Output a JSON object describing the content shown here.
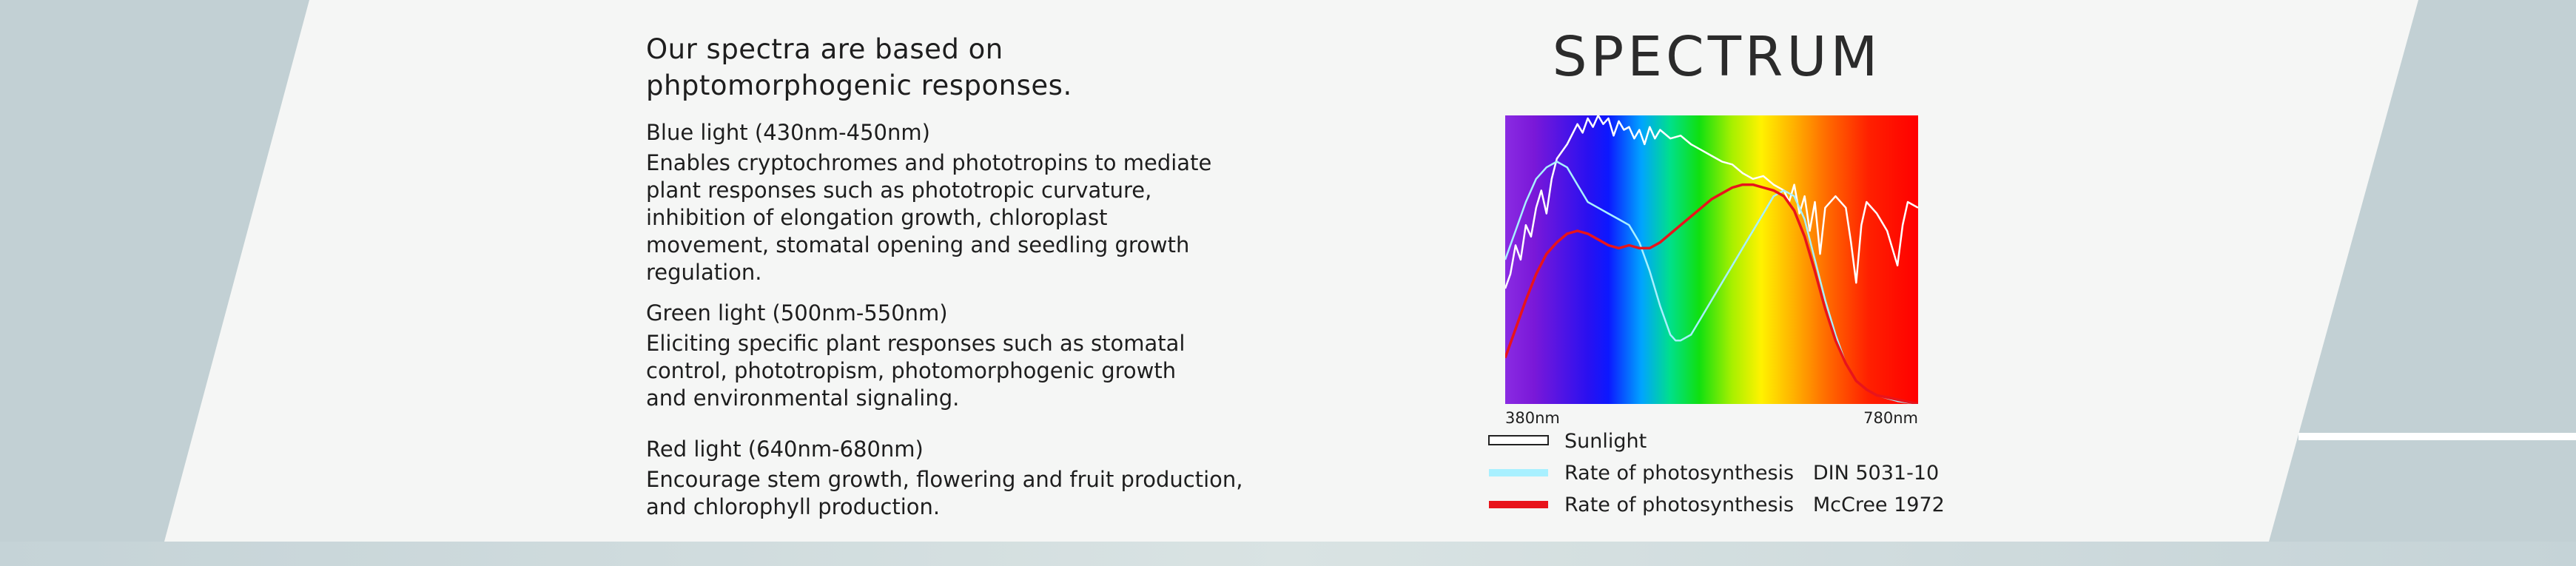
{
  "text": {
    "headline_line1": "Our spectra are based on",
    "headline_line2": "phptomorphogenic responses.",
    "blue_title": "Blue light (430nm-450nm)",
    "blue_body": [
      "Enables cryptochromes and phototropins to mediate",
      "plant responses such as phototropic curvature,",
      "inhibition of elongation growth, chloroplast",
      "movement, stomatal opening and seedling growth",
      "regulation."
    ],
    "green_title": "Green light (500nm-550nm)",
    "green_body": [
      "Eliciting specific plant responses such as stomatal",
      "control, phototropism, photomorphogenic growth",
      "and environmental signaling."
    ],
    "red_title": "Red light (640nm-680nm)",
    "red_body": [
      "Encourage stem growth, flowering and fruit production,",
      "and chlorophyll production."
    ]
  },
  "colors": {
    "background": "#c2d0d4",
    "panel": "#f5f6f5",
    "sunlight": "#ffffff",
    "din": "#a8f0ff",
    "mccree": "#e8141b"
  },
  "chart_data": {
    "type": "line",
    "title": "SPECTRUM",
    "xlim": [
      380,
      780
    ],
    "ylim": [
      0,
      1
    ],
    "x_tick_labels": [
      "380nm",
      "780nm"
    ],
    "background": "visible spectrum gradient",
    "series": [
      {
        "name": "Sunlight",
        "color": "#ffffff",
        "points": [
          [
            380,
            0.4
          ],
          [
            385,
            0.45
          ],
          [
            390,
            0.55
          ],
          [
            395,
            0.5
          ],
          [
            400,
            0.62
          ],
          [
            405,
            0.58
          ],
          [
            410,
            0.68
          ],
          [
            415,
            0.74
          ],
          [
            420,
            0.66
          ],
          [
            425,
            0.78
          ],
          [
            430,
            0.85
          ],
          [
            440,
            0.9
          ],
          [
            450,
            0.97
          ],
          [
            455,
            0.94
          ],
          [
            460,
            0.99
          ],
          [
            465,
            0.96
          ],
          [
            470,
            1.0
          ],
          [
            475,
            0.97
          ],
          [
            480,
            0.99
          ],
          [
            485,
            0.93
          ],
          [
            490,
            0.98
          ],
          [
            495,
            0.95
          ],
          [
            500,
            0.96
          ],
          [
            505,
            0.92
          ],
          [
            510,
            0.95
          ],
          [
            515,
            0.9
          ],
          [
            520,
            0.96
          ],
          [
            525,
            0.92
          ],
          [
            530,
            0.95
          ],
          [
            540,
            0.92
          ],
          [
            550,
            0.93
          ],
          [
            560,
            0.9
          ],
          [
            570,
            0.88
          ],
          [
            580,
            0.86
          ],
          [
            590,
            0.84
          ],
          [
            600,
            0.83
          ],
          [
            610,
            0.8
          ],
          [
            620,
            0.78
          ],
          [
            630,
            0.79
          ],
          [
            640,
            0.76
          ],
          [
            650,
            0.74
          ],
          [
            655,
            0.7
          ],
          [
            660,
            0.76
          ],
          [
            665,
            0.66
          ],
          [
            670,
            0.72
          ],
          [
            675,
            0.6
          ],
          [
            680,
            0.7
          ],
          [
            685,
            0.52
          ],
          [
            690,
            0.68
          ],
          [
            700,
            0.72
          ],
          [
            710,
            0.68
          ],
          [
            715,
            0.56
          ],
          [
            720,
            0.42
          ],
          [
            725,
            0.62
          ],
          [
            730,
            0.7
          ],
          [
            740,
            0.66
          ],
          [
            750,
            0.6
          ],
          [
            760,
            0.48
          ],
          [
            765,
            0.62
          ],
          [
            770,
            0.7
          ],
          [
            780,
            0.68
          ]
        ]
      },
      {
        "name": "Rate of photosynthesis   DIN 5031-10",
        "color": "#a8f0ff",
        "points": [
          [
            380,
            0.5
          ],
          [
            390,
            0.6
          ],
          [
            400,
            0.7
          ],
          [
            410,
            0.78
          ],
          [
            420,
            0.82
          ],
          [
            430,
            0.84
          ],
          [
            440,
            0.82
          ],
          [
            450,
            0.76
          ],
          [
            460,
            0.7
          ],
          [
            470,
            0.68
          ],
          [
            480,
            0.66
          ],
          [
            490,
            0.64
          ],
          [
            500,
            0.62
          ],
          [
            510,
            0.56
          ],
          [
            520,
            0.46
          ],
          [
            530,
            0.34
          ],
          [
            540,
            0.24
          ],
          [
            545,
            0.22
          ],
          [
            550,
            0.22
          ],
          [
            560,
            0.24
          ],
          [
            570,
            0.3
          ],
          [
            580,
            0.36
          ],
          [
            590,
            0.42
          ],
          [
            600,
            0.48
          ],
          [
            610,
            0.54
          ],
          [
            620,
            0.6
          ],
          [
            630,
            0.66
          ],
          [
            640,
            0.72
          ],
          [
            650,
            0.74
          ],
          [
            660,
            0.72
          ],
          [
            670,
            0.64
          ],
          [
            680,
            0.5
          ],
          [
            690,
            0.36
          ],
          [
            700,
            0.24
          ],
          [
            710,
            0.14
          ],
          [
            720,
            0.08
          ],
          [
            730,
            0.05
          ],
          [
            740,
            0.03
          ],
          [
            750,
            0.02
          ],
          [
            760,
            0.01
          ],
          [
            780,
            0.0
          ]
        ]
      },
      {
        "name": "Rate of photosynthesis   McCree 1972",
        "color": "#e8141b",
        "points": [
          [
            380,
            0.16
          ],
          [
            390,
            0.26
          ],
          [
            400,
            0.36
          ],
          [
            410,
            0.45
          ],
          [
            420,
            0.52
          ],
          [
            430,
            0.56
          ],
          [
            440,
            0.59
          ],
          [
            450,
            0.6
          ],
          [
            460,
            0.59
          ],
          [
            470,
            0.57
          ],
          [
            480,
            0.55
          ],
          [
            490,
            0.54
          ],
          [
            500,
            0.55
          ],
          [
            510,
            0.54
          ],
          [
            520,
            0.54
          ],
          [
            530,
            0.56
          ],
          [
            540,
            0.59
          ],
          [
            550,
            0.62
          ],
          [
            560,
            0.65
          ],
          [
            570,
            0.68
          ],
          [
            580,
            0.71
          ],
          [
            590,
            0.73
          ],
          [
            600,
            0.75
          ],
          [
            610,
            0.76
          ],
          [
            620,
            0.76
          ],
          [
            630,
            0.75
          ],
          [
            640,
            0.74
          ],
          [
            650,
            0.72
          ],
          [
            660,
            0.67
          ],
          [
            670,
            0.58
          ],
          [
            680,
            0.46
          ],
          [
            690,
            0.33
          ],
          [
            700,
            0.22
          ],
          [
            710,
            0.14
          ],
          [
            720,
            0.08
          ],
          [
            730,
            0.05
          ],
          [
            740,
            0.03
          ],
          [
            760,
            0.015
          ],
          [
            780,
            0.0
          ]
        ]
      }
    ]
  }
}
